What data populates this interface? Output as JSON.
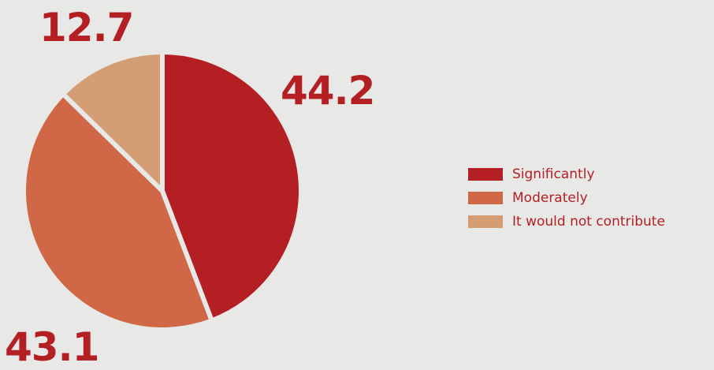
{
  "chart_data": {
    "type": "pie",
    "categories": [
      "Significantly",
      "Moderately",
      "It would not contribute"
    ],
    "values": [
      44.2,
      43.1,
      12.7
    ],
    "data_labels": [
      "44.2",
      "43.1",
      "12.7"
    ],
    "colors": [
      "#b41f24",
      "#d06847",
      "#d49d73"
    ],
    "start_angle_deg": 0,
    "direction": "clockwise",
    "legend_position": "right",
    "title": "",
    "grid": false
  },
  "legend": {
    "items": [
      {
        "label": "Significantly",
        "color": "#b41f24"
      },
      {
        "label": "Moderately",
        "color": "#d06847"
      },
      {
        "label": "It would not contribute",
        "color": "#d49d73"
      }
    ]
  },
  "colors": {
    "background": "#e8e8e7",
    "label_text": "#b41f24"
  }
}
